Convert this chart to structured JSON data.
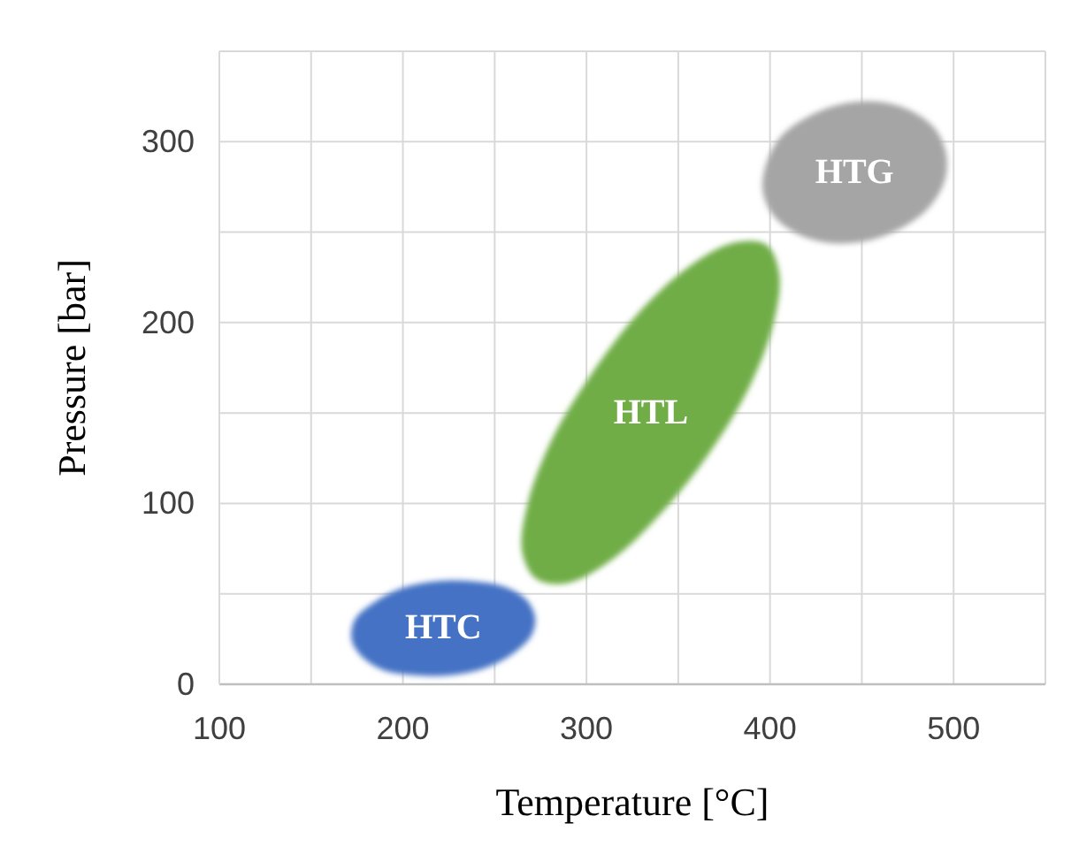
{
  "chart_data": {
    "type": "area",
    "xlabel": "Temperature [°C]",
    "ylabel": "Pressure [bar]",
    "xlim": [
      100,
      550
    ],
    "ylim": [
      0,
      350
    ],
    "xticks": [
      100,
      {
        "value": 150,
        "label": null
      },
      200,
      {
        "value": 250,
        "label": null
      },
      300,
      {
        "value": 350,
        "label": null
      },
      400,
      {
        "value": 450,
        "label": null
      },
      500,
      {
        "value": 550,
        "label": null
      }
    ],
    "yticks": [
      0,
      {
        "value": 50,
        "label": null
      },
      100,
      {
        "value": 150,
        "label": null
      },
      200,
      {
        "value": 250,
        "label": null
      },
      300,
      {
        "value": 350,
        "label": null
      }
    ],
    "grid": true,
    "series": [
      {
        "name": "HTC",
        "color": "#4472c4",
        "x": [
          272,
          267,
          255,
          238,
          218,
          199,
          184,
          174,
          172,
          177,
          189,
          207,
          226,
          245,
          260,
          270
        ],
        "values": [
          37,
          47,
          54,
          57,
          57,
          53,
          45,
          36,
          25,
          16,
          8,
          5,
          5,
          9,
          17,
          27
        ]
      },
      {
        "name": "HTL",
        "color": "#70ad47",
        "x": [
          398,
          380,
          356,
          329,
          303,
          281,
          268,
          265,
          273,
          290,
          314,
          341,
          367,
          389,
          402,
          405
        ],
        "values": [
          243,
          244,
          231,
          206,
          172,
          135,
          100,
          73,
          58,
          56,
          69,
          95,
          128,
          165,
          200,
          227
        ]
      },
      {
        "name": "HTG",
        "color": "#a5a5a5",
        "x": [
          496,
          490,
          477,
          460,
          440,
          421,
          406,
          398,
          396,
          402,
          415,
          432,
          452,
          471,
          486,
          495
        ],
        "values": [
          293,
          307,
          317,
          322,
          321,
          314,
          303,
          288,
          273,
          259,
          249,
          244,
          245,
          252,
          263,
          278
        ]
      }
    ]
  }
}
